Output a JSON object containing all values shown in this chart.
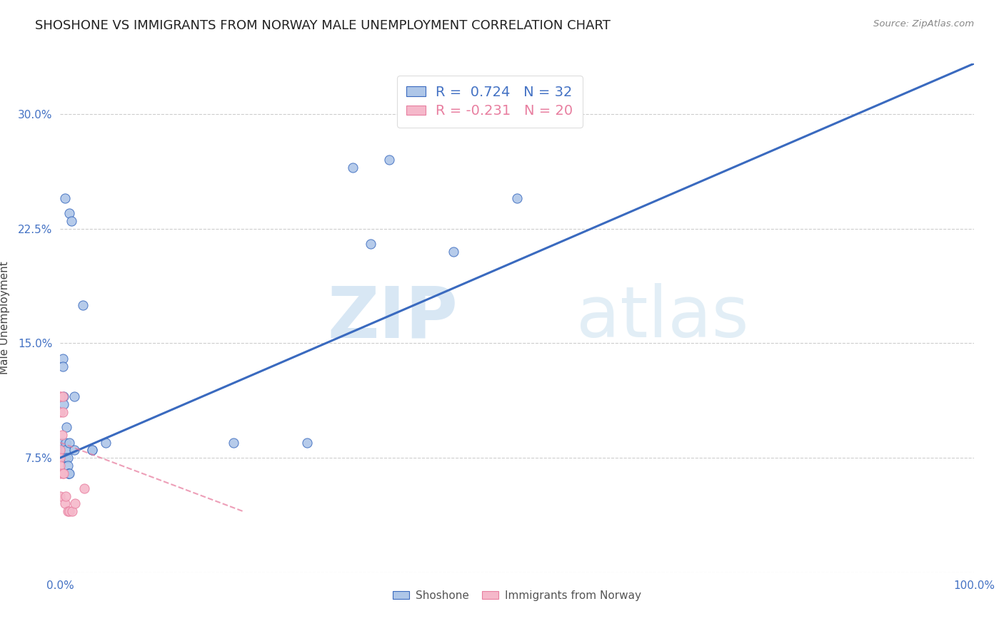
{
  "title": "SHOSHONE VS IMMIGRANTS FROM NORWAY MALE UNEMPLOYMENT CORRELATION CHART",
  "source": "Source: ZipAtlas.com",
  "ylabel": "Male Unemployment",
  "xlim": [
    0,
    1.0
  ],
  "ylim": [
    0,
    0.333
  ],
  "xticks": [
    0.0,
    0.25,
    0.5,
    0.75,
    1.0
  ],
  "xticklabels": [
    "0.0%",
    "",
    "",
    "",
    "100.0%"
  ],
  "yticks": [
    0.075,
    0.15,
    0.225,
    0.3
  ],
  "yticklabels": [
    "7.5%",
    "15.0%",
    "22.5%",
    "30.0%"
  ],
  "shoshone_R": 0.724,
  "shoshone_N": 32,
  "norway_R": -0.231,
  "norway_N": 20,
  "shoshone_color": "#aec6e8",
  "norway_color": "#f5b8ca",
  "shoshone_line_color": "#3a6abf",
  "norway_line_color": "#e87fa0",
  "watermark_zip": "ZIP",
  "watermark_atlas": "atlas",
  "shoshone_x": [
    0.005,
    0.01,
    0.0,
    0.002,
    0.003,
    0.003,
    0.004,
    0.004,
    0.006,
    0.006,
    0.006,
    0.007,
    0.008,
    0.008,
    0.009,
    0.009,
    0.01,
    0.01,
    0.012,
    0.015,
    0.015,
    0.025,
    0.035,
    0.035,
    0.05,
    0.19,
    0.27,
    0.32,
    0.34,
    0.36,
    0.43,
    0.5
  ],
  "shoshone_y": [
    0.245,
    0.235,
    0.08,
    0.085,
    0.14,
    0.135,
    0.115,
    0.11,
    0.085,
    0.08,
    0.075,
    0.095,
    0.075,
    0.07,
    0.065,
    0.065,
    0.085,
    0.065,
    0.23,
    0.115,
    0.08,
    0.175,
    0.08,
    0.08,
    0.085,
    0.085,
    0.085,
    0.265,
    0.215,
    0.27,
    0.21,
    0.245
  ],
  "norway_x": [
    0.0,
    0.0,
    0.0,
    0.0,
    0.0,
    0.0,
    0.0,
    0.0,
    0.002,
    0.003,
    0.003,
    0.003,
    0.004,
    0.005,
    0.006,
    0.008,
    0.01,
    0.013,
    0.016,
    0.026
  ],
  "norway_y": [
    0.115,
    0.115,
    0.105,
    0.08,
    0.075,
    0.07,
    0.065,
    0.05,
    0.09,
    0.115,
    0.105,
    0.065,
    0.065,
    0.045,
    0.05,
    0.04,
    0.04,
    0.04,
    0.045,
    0.055
  ],
  "shoshone_line_x": [
    0.0,
    1.0
  ],
  "shoshone_line_y": [
    0.075,
    0.333
  ],
  "norway_line_x": [
    0.0,
    0.2
  ],
  "norway_line_y": [
    0.085,
    0.04
  ],
  "background_color": "#ffffff",
  "grid_color": "#c8c8c8",
  "title_fontsize": 13,
  "tick_fontsize": 11,
  "marker_size": 90
}
